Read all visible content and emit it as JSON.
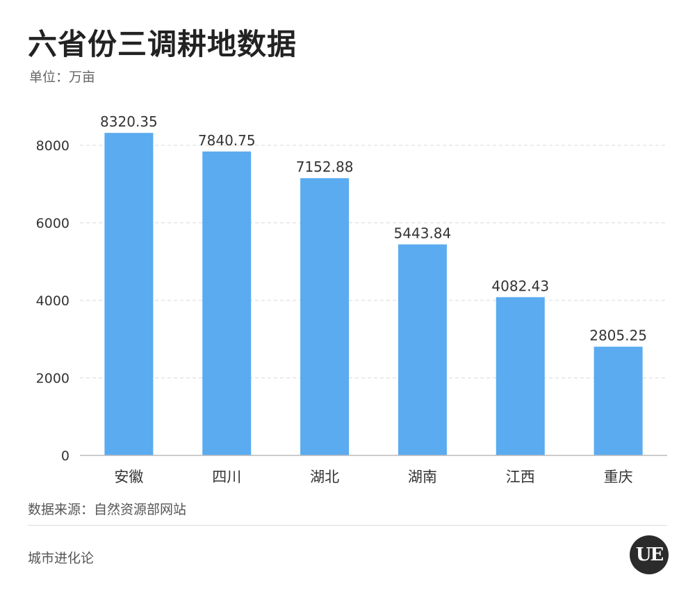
{
  "header": {
    "title": "六省份三调耕地数据",
    "unit": "单位：万亩"
  },
  "footer": {
    "source": "数据来源：自然资源部网站",
    "brand": "城市进化论",
    "logo_text": "UE"
  },
  "colors": {
    "bar": "#5aabf0",
    "grid": "#d9d9d9",
    "axis": "#bbbbbb",
    "text": "#333333"
  },
  "chart_data": {
    "type": "bar",
    "title": "六省份三调耕地数据",
    "subtitle": "单位：万亩",
    "categories": [
      "安徽",
      "四川",
      "湖北",
      "湖南",
      "江西",
      "重庆"
    ],
    "values": [
      8320.35,
      7840.75,
      7152.88,
      5443.84,
      4082.43,
      2805.25
    ],
    "value_labels": [
      "8320.35",
      "7840.75",
      "7152.88",
      "5443.84",
      "4082.43",
      "2805.25"
    ],
    "yticks": [
      0,
      2000,
      4000,
      6000,
      8000
    ],
    "ylim": [
      0,
      8000
    ],
    "xlabel": "",
    "ylabel": "",
    "grid": true,
    "legend": "none"
  }
}
